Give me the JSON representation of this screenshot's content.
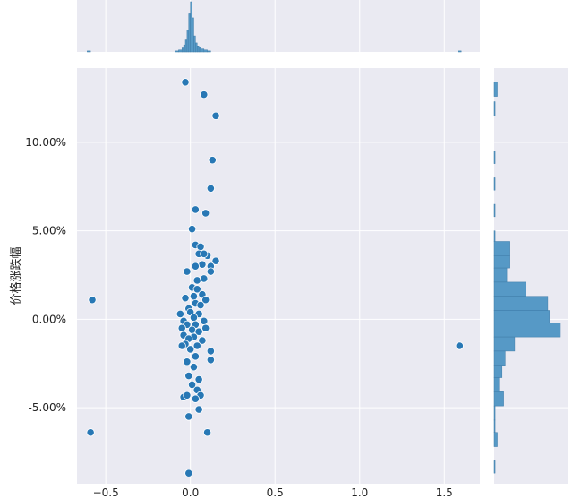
{
  "chart_data": {
    "type": "scatter",
    "subtype": "jointplot",
    "title": "",
    "xlabel": "",
    "ylabel": "价格涨跌幅",
    "xlim": [
      -0.67,
      1.71
    ],
    "ylim": [
      -0.093,
      0.142
    ],
    "x_ticks": [
      {
        "value": -0.5,
        "label": "−0.5"
      },
      {
        "value": 0.0,
        "label": "0.0"
      },
      {
        "value": 0.5,
        "label": "0.5"
      },
      {
        "value": 1.0,
        "label": "1.0"
      },
      {
        "value": 1.5,
        "label": "1.5"
      }
    ],
    "y_ticks": [
      {
        "value": -0.05,
        "label": "-5.00%"
      },
      {
        "value": 0.0,
        "label": "0.00%"
      },
      {
        "value": 0.05,
        "label": "5.00%"
      },
      {
        "value": 0.1,
        "label": "10.00%"
      }
    ],
    "grid": true,
    "colors": {
      "background": "#eaeaf2",
      "grid": "#ffffff",
      "marker": "#2878b5",
      "marker_edge": "#ffffff",
      "bar": "#5699c6",
      "bar_edge": "#3f7ca8"
    },
    "points": [
      [
        -0.03,
        0.134
      ],
      [
        0.08,
        0.127
      ],
      [
        0.15,
        0.115
      ],
      [
        0.13,
        0.09
      ],
      [
        0.12,
        0.074
      ],
      [
        0.03,
        0.062
      ],
      [
        0.09,
        0.06
      ],
      [
        0.01,
        0.051
      ],
      [
        0.03,
        0.042
      ],
      [
        0.06,
        0.041
      ],
      [
        0.1,
        0.036
      ],
      [
        0.05,
        0.037
      ],
      [
        0.08,
        0.037
      ],
      [
        0.15,
        0.033
      ],
      [
        0.12,
        0.03
      ],
      [
        0.07,
        0.031
      ],
      [
        0.03,
        0.03
      ],
      [
        -0.02,
        0.027
      ],
      [
        0.12,
        0.027
      ],
      [
        0.04,
        0.022
      ],
      [
        0.08,
        0.023
      ],
      [
        0.01,
        0.018
      ],
      [
        0.04,
        0.017
      ],
      [
        0.07,
        0.014
      ],
      [
        0.02,
        0.013
      ],
      [
        0.09,
        0.011
      ],
      [
        -0.03,
        0.012
      ],
      [
        0.03,
        0.009
      ],
      [
        0.06,
        0.008
      ],
      [
        -0.01,
        0.006
      ],
      [
        0.0,
        0.004
      ],
      [
        0.05,
        0.003
      ],
      [
        -0.06,
        0.003
      ],
      [
        0.02,
        0.001
      ],
      [
        -0.04,
        -0.001
      ],
      [
        0.08,
        -0.001
      ],
      [
        0.03,
        -0.003
      ],
      [
        -0.02,
        -0.003
      ],
      [
        -0.05,
        -0.005
      ],
      [
        0.01,
        -0.006
      ],
      [
        0.05,
        -0.007
      ],
      [
        0.09,
        -0.005
      ],
      [
        -0.04,
        -0.009
      ],
      [
        0.02,
        -0.01
      ],
      [
        -0.01,
        -0.011
      ],
      [
        0.07,
        -0.012
      ],
      [
        -0.03,
        -0.014
      ],
      [
        0.04,
        -0.015
      ],
      [
        0.0,
        -0.017
      ],
      [
        -0.05,
        -0.015
      ],
      [
        0.03,
        -0.021
      ],
      [
        0.12,
        -0.018
      ],
      [
        -0.02,
        -0.024
      ],
      [
        0.02,
        -0.027
      ],
      [
        0.12,
        -0.023
      ],
      [
        -0.01,
        -0.032
      ],
      [
        0.05,
        -0.034
      ],
      [
        0.01,
        -0.037
      ],
      [
        0.04,
        -0.04
      ],
      [
        -0.04,
        -0.044
      ],
      [
        -0.02,
        -0.043
      ],
      [
        0.06,
        -0.043
      ],
      [
        0.03,
        -0.045
      ],
      [
        0.05,
        -0.051
      ],
      [
        -0.01,
        -0.055
      ],
      [
        0.1,
        -0.064
      ],
      [
        -0.01,
        -0.087
      ],
      [
        -0.58,
        0.011
      ],
      [
        -0.59,
        -0.064
      ],
      [
        1.59,
        -0.015
      ]
    ],
    "marginal_x": {
      "bins": [
        {
          "x0": -0.61,
          "x1": -0.59,
          "count": 1
        },
        {
          "x0": -0.09,
          "x1": -0.07,
          "count": 1
        },
        {
          "x0": -0.07,
          "x1": -0.05,
          "count": 2
        },
        {
          "x0": -0.05,
          "x1": -0.04,
          "count": 4
        },
        {
          "x0": -0.04,
          "x1": -0.03,
          "count": 7
        },
        {
          "x0": -0.03,
          "x1": -0.02,
          "count": 12
        },
        {
          "x0": -0.02,
          "x1": -0.01,
          "count": 22
        },
        {
          "x0": -0.01,
          "x1": 0.0,
          "count": 38
        },
        {
          "x0": 0.0,
          "x1": 0.01,
          "count": 50
        },
        {
          "x0": 0.01,
          "x1": 0.02,
          "count": 34
        },
        {
          "x0": 0.02,
          "x1": 0.03,
          "count": 16
        },
        {
          "x0": 0.03,
          "x1": 0.04,
          "count": 9
        },
        {
          "x0": 0.04,
          "x1": 0.05,
          "count": 6
        },
        {
          "x0": 0.05,
          "x1": 0.06,
          "count": 5
        },
        {
          "x0": 0.06,
          "x1": 0.08,
          "count": 3
        },
        {
          "x0": 0.08,
          "x1": 0.1,
          "count": 2
        },
        {
          "x0": 0.1,
          "x1": 0.12,
          "count": 1
        },
        {
          "x0": 1.58,
          "x1": 1.6,
          "count": 1
        }
      ]
    },
    "marginal_y": {
      "bins": [
        {
          "y0": 0.126,
          "y1": 0.134,
          "count": 1
        },
        {
          "y0": 0.115,
          "y1": 0.123,
          "count": 0.3
        },
        {
          "y0": 0.088,
          "y1": 0.095,
          "count": 0.3
        },
        {
          "y0": 0.073,
          "y1": 0.08,
          "count": 0.3
        },
        {
          "y0": 0.058,
          "y1": 0.065,
          "count": 0.3
        },
        {
          "y0": 0.044,
          "y1": 0.05,
          "count": 0.3
        },
        {
          "y0": 0.036,
          "y1": 0.044,
          "count": 5
        },
        {
          "y0": 0.029,
          "y1": 0.036,
          "count": 5
        },
        {
          "y0": 0.021,
          "y1": 0.029,
          "count": 4
        },
        {
          "y0": 0.013,
          "y1": 0.021,
          "count": 10
        },
        {
          "y0": 0.005,
          "y1": 0.013,
          "count": 17
        },
        {
          "y0": -0.002,
          "y1": 0.005,
          "count": 17.5
        },
        {
          "y0": -0.01,
          "y1": -0.002,
          "count": 21
        },
        {
          "y0": -0.018,
          "y1": -0.01,
          "count": 6.5
        },
        {
          "y0": -0.026,
          "y1": -0.018,
          "count": 3.5
        },
        {
          "y0": -0.033,
          "y1": -0.026,
          "count": 2.5
        },
        {
          "y0": -0.041,
          "y1": -0.033,
          "count": 1.5
        },
        {
          "y0": -0.049,
          "y1": -0.041,
          "count": 3
        },
        {
          "y0": -0.057,
          "y1": -0.049,
          "count": 0.3
        },
        {
          "y0": -0.064,
          "y1": -0.057,
          "count": 0.3
        },
        {
          "y0": -0.072,
          "y1": -0.064,
          "count": 1
        },
        {
          "y0": -0.087,
          "y1": -0.08,
          "count": 0.3
        }
      ]
    }
  }
}
